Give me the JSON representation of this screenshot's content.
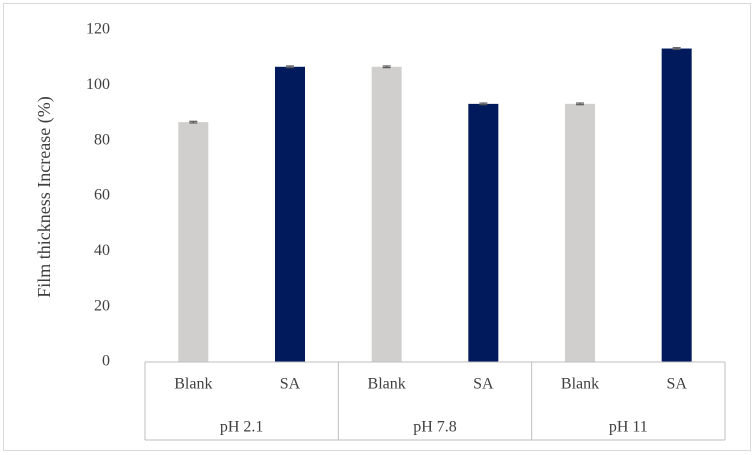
{
  "chart_data": {
    "type": "bar",
    "ylabel": "Film thickness Increase (%)",
    "categories": [
      "Blank",
      "SA",
      "Blank",
      "SA",
      "Blank",
      "SA"
    ],
    "groups": [
      "pH 2.1",
      "pH 7.8",
      "pH 11"
    ],
    "values": [
      86.7,
      106.7,
      106.7,
      93.3,
      93.3,
      113.3
    ],
    "errors": [
      0.3,
      0.3,
      0.3,
      0.3,
      0.3,
      0.3
    ],
    "colors": [
      "#d0cfcd",
      "#001a5c",
      "#d0cfcd",
      "#001a5c",
      "#d0cfcd",
      "#001a5c"
    ],
    "ylim": [
      0,
      120
    ],
    "yticks": [
      0,
      20,
      40,
      60,
      80,
      100,
      120
    ],
    "grid": false
  }
}
